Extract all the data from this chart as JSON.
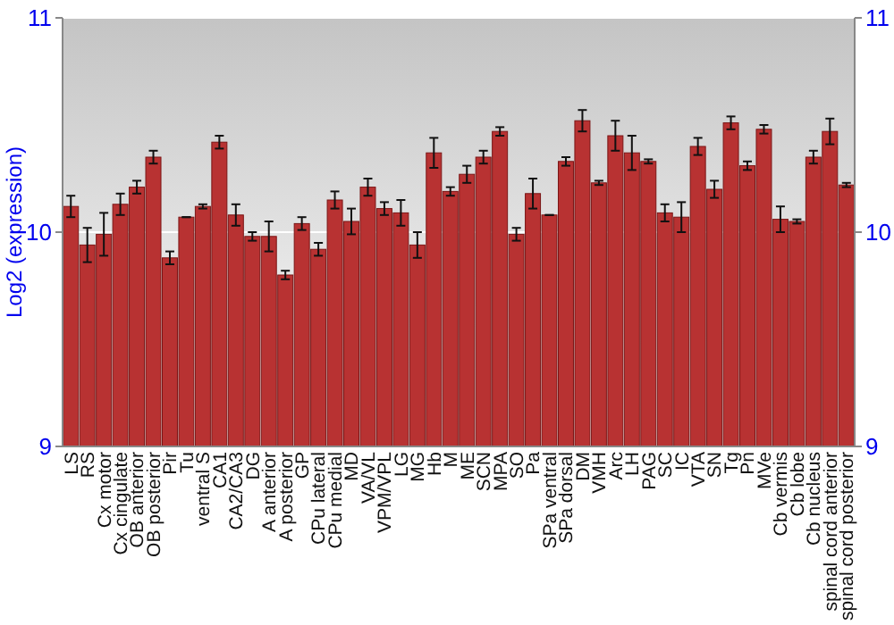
{
  "chart_data": {
    "type": "bar",
    "ylabel": "Log2 (expression)",
    "categories": [
      "LS",
      "RS",
      "Cx motor",
      "Cx cingulate",
      "OB anterior",
      "OB posterior",
      "Pir",
      "Tu",
      "ventral S",
      "CA1",
      "CA2/CA3",
      "DG",
      "A anterior",
      "A posterior",
      "GP",
      "CPu lateral",
      "CPu medial",
      "MD",
      "VA/VL",
      "VPM/VPL",
      "LG",
      "MG",
      "Hb",
      "M",
      "ME",
      "SCN",
      "MPA",
      "SO",
      "Pa",
      "SPa ventral",
      "SPa dorsal",
      "DM",
      "VMH",
      "Arc",
      "LH",
      "PAG",
      "SC",
      "IC",
      "VTA",
      "SN",
      "Tg",
      "Pn",
      "MVe",
      "Cb vermis",
      "Cb lobe",
      "Cb nucleus",
      "spinal cord anterior",
      "spinal cord posterior"
    ],
    "values": [
      10.12,
      9.94,
      9.99,
      10.13,
      10.21,
      10.35,
      9.88,
      10.07,
      10.12,
      10.42,
      10.08,
      9.98,
      9.98,
      9.8,
      10.04,
      9.92,
      10.15,
      10.05,
      10.21,
      10.11,
      10.09,
      9.94,
      10.37,
      10.19,
      10.27,
      10.35,
      10.47,
      9.99,
      10.18,
      10.08,
      10.33,
      10.52,
      10.23,
      10.45,
      10.37,
      10.33,
      10.09,
      10.07,
      10.4,
      10.2,
      10.51,
      10.31,
      10.48,
      10.06,
      10.05,
      10.35,
      10.47,
      10.22
    ],
    "errors": [
      0.05,
      0.08,
      0.1,
      0.05,
      0.03,
      0.03,
      0.03,
      0,
      0.01,
      0.03,
      0.05,
      0.02,
      0.07,
      0.02,
      0.03,
      0.03,
      0.04,
      0.06,
      0.04,
      0.03,
      0.06,
      0.06,
      0.07,
      0.02,
      0.04,
      0.03,
      0.02,
      0.03,
      0.07,
      0,
      0.02,
      0.05,
      0.01,
      0.07,
      0.08,
      0.01,
      0.04,
      0.07,
      0.04,
      0.04,
      0.03,
      0.02,
      0.02,
      0.06,
      0.01,
      0.03,
      0.06,
      0.01
    ],
    "color": "#b83232",
    "ylim": [
      9,
      11
    ],
    "yticks": [
      9,
      10,
      11
    ],
    "y2lim": [
      9,
      11
    ],
    "y2ticks": [
      9,
      10,
      11
    ],
    "grid": "y"
  }
}
